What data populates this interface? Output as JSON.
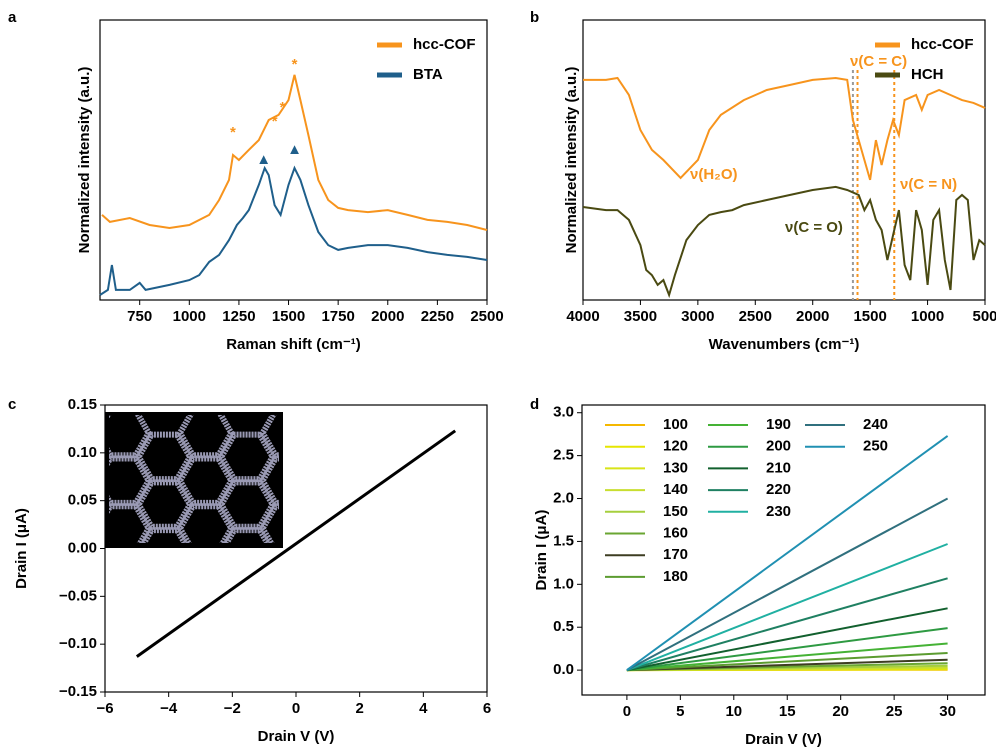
{
  "chart_data": [
    {
      "type": "line",
      "panel_label": "a",
      "xlabel": "Raman shift (cm⁻¹)",
      "ylabel": "Normalized intensity (a.u.)",
      "xlim": [
        550,
        2500
      ],
      "ylim": [
        0,
        1
      ],
      "xticks": [
        750,
        1000,
        1250,
        1500,
        1750,
        2000,
        2250,
        2500
      ],
      "legend": "upper right",
      "series": [
        {
          "name": "hcc-COF",
          "color": "#f7941d",
          "x": [
            560,
            600,
            700,
            800,
            900,
            1000,
            1100,
            1150,
            1200,
            1220,
            1250,
            1300,
            1350,
            1400,
            1450,
            1500,
            1530,
            1560,
            1600,
            1650,
            1700,
            1750,
            1800,
            1900,
            2000,
            2100,
            2200,
            2300,
            2400,
            2500
          ],
          "values": [
            0.304,
            0.279,
            0.293,
            0.268,
            0.257,
            0.268,
            0.304,
            0.357,
            0.429,
            0.518,
            0.5,
            0.536,
            0.571,
            0.643,
            0.661,
            0.714,
            0.804,
            0.714,
            0.589,
            0.429,
            0.357,
            0.329,
            0.321,
            0.314,
            0.321,
            0.304,
            0.286,
            0.279,
            0.268,
            0.25
          ]
        },
        {
          "name": "BTA",
          "color": "#1f5f8b",
          "x": [
            550,
            590,
            610,
            630,
            700,
            750,
            780,
            900,
            1000,
            1050,
            1100,
            1150,
            1200,
            1240,
            1270,
            1300,
            1350,
            1380,
            1400,
            1430,
            1460,
            1500,
            1530,
            1560,
            1600,
            1650,
            1700,
            1750,
            1800,
            1900,
            2000,
            2100,
            2200,
            2300,
            2400,
            2500
          ],
          "values": [
            0.018,
            0.036,
            0.125,
            0.036,
            0.036,
            0.061,
            0.036,
            0.054,
            0.071,
            0.089,
            0.136,
            0.161,
            0.214,
            0.268,
            0.293,
            0.321,
            0.411,
            0.471,
            0.446,
            0.339,
            0.304,
            0.411,
            0.471,
            0.429,
            0.339,
            0.243,
            0.196,
            0.179,
            0.186,
            0.196,
            0.196,
            0.186,
            0.171,
            0.161,
            0.154,
            0.143
          ]
        }
      ],
      "peaks": [
        {
          "symbol": "*",
          "color": "#f7941d",
          "x": 1220,
          "y": 0.596
        },
        {
          "symbol": "*",
          "color": "#f7941d",
          "x": 1430,
          "y": 0.636
        },
        {
          "symbol": "*",
          "color": "#f7941d",
          "x": 1470,
          "y": 0.686
        },
        {
          "symbol": "*",
          "color": "#f7941d",
          "x": 1530,
          "y": 0.839
        },
        {
          "symbol": "▲",
          "color": "#1f5f8b",
          "x": 1375,
          "y": 0.5
        },
        {
          "symbol": "▲",
          "color": "#1f5f8b",
          "x": 1530,
          "y": 0.536
        }
      ]
    },
    {
      "type": "line",
      "panel_label": "b",
      "xlabel": "Wavenumbers (cm⁻¹)",
      "ylabel": "Normalized intensity (a.u.)",
      "xlim": [
        4000,
        500
      ],
      "ylim": [
        0,
        1
      ],
      "xticks": [
        4000,
        3500,
        3000,
        2500,
        2000,
        1500,
        1000,
        500
      ],
      "legend": "upper right",
      "series": [
        {
          "name": "hcc-COF",
          "color": "#f7941d",
          "x": [
            4000,
            3800,
            3700,
            3600,
            3500,
            3400,
            3300,
            3150,
            3000,
            2900,
            2800,
            2600,
            2400,
            2200,
            2000,
            1800,
            1700,
            1650,
            1600,
            1550,
            1500,
            1450,
            1400,
            1350,
            1300,
            1250,
            1200,
            1100,
            1050,
            1000,
            900,
            800,
            700,
            600,
            500
          ],
          "values": [
            0.786,
            0.786,
            0.793,
            0.732,
            0.607,
            0.536,
            0.5,
            0.436,
            0.5,
            0.607,
            0.661,
            0.714,
            0.75,
            0.768,
            0.786,
            0.793,
            0.786,
            0.643,
            0.571,
            0.5,
            0.429,
            0.571,
            0.482,
            0.571,
            0.643,
            0.589,
            0.714,
            0.732,
            0.679,
            0.732,
            0.75,
            0.732,
            0.714,
            0.704,
            0.686
          ]
        },
        {
          "name": "HCH",
          "color": "#4a4a12",
          "x": [
            4000,
            3800,
            3700,
            3600,
            3500,
            3450,
            3400,
            3350,
            3300,
            3250,
            3200,
            3100,
            3000,
            2900,
            2800,
            2700,
            2600,
            2400,
            2200,
            2000,
            1800,
            1700,
            1600,
            1550,
            1500,
            1450,
            1400,
            1350,
            1300,
            1250,
            1200,
            1150,
            1100,
            1050,
            1000,
            950,
            900,
            850,
            800,
            750,
            700,
            650,
            600,
            550,
            500
          ],
          "values": [
            0.332,
            0.321,
            0.321,
            0.286,
            0.196,
            0.107,
            0.089,
            0.054,
            0.071,
            0.018,
            0.089,
            0.214,
            0.268,
            0.304,
            0.314,
            0.321,
            0.339,
            0.357,
            0.375,
            0.393,
            0.404,
            0.393,
            0.375,
            0.321,
            0.357,
            0.286,
            0.25,
            0.143,
            0.232,
            0.321,
            0.125,
            0.071,
            0.321,
            0.25,
            0.054,
            0.286,
            0.321,
            0.143,
            0.036,
            0.357,
            0.375,
            0.357,
            0.143,
            0.214,
            0.196
          ]
        }
      ],
      "reference_lines": [
        {
          "x": 1650,
          "color": "#999999"
        },
        {
          "x": 1610,
          "color": "#f7941d"
        },
        {
          "x": 1290,
          "color": "#f7941d"
        }
      ],
      "annotations": [
        {
          "text": "ν(H₂O)",
          "color": "#f7941d"
        },
        {
          "text": "ν(C = C)",
          "color": "#f7941d"
        },
        {
          "text": "ν(C = N)",
          "color": "#f7941d"
        },
        {
          "text": "ν(C = O)",
          "color": "#4a4a12"
        }
      ]
    },
    {
      "type": "line",
      "panel_label": "c",
      "xlabel": "Drain V (V)",
      "ylabel": "Drain I (μA)",
      "xlim": [
        -6,
        6
      ],
      "ylim": [
        -0.15,
        0.15
      ],
      "xticks": [
        {
          "value": -6,
          "label": "−6"
        },
        {
          "value": -4,
          "label": "−4"
        },
        {
          "value": -2,
          "label": "−2"
        },
        0,
        2,
        4,
        6
      ],
      "yticks": [
        {
          "value": -0.15,
          "label": "−0.15"
        },
        {
          "value": -0.1,
          "label": "−0.10"
        },
        {
          "value": -0.05,
          "label": "−0.05"
        },
        {
          "value": 0,
          "label": "0.00"
        },
        0.05,
        {
          "value": 0.1,
          "label": "0.10"
        },
        0.15
      ],
      "series": [
        {
          "color": "#000000",
          "x": [
            -5,
            5
          ],
          "values": [
            -0.113,
            0.123
          ]
        }
      ]
    },
    {
      "type": "line",
      "panel_label": "d",
      "xlabel": "Drain V (V)",
      "ylabel": "Drain I (μA)",
      "xlim": [
        -4.2,
        33.5
      ],
      "ylim": [
        -0.29,
        3.09
      ],
      "xticks": [
        0,
        5,
        10,
        15,
        20,
        25,
        30
      ],
      "yticks": [
        {
          "value": 0,
          "label": "0.0"
        },
        {
          "value": 0.5,
          "label": "0.5"
        },
        {
          "value": 1,
          "label": "1.0"
        },
        {
          "value": 1.5,
          "label": "1.5"
        },
        {
          "value": 2,
          "label": "2.0"
        },
        {
          "value": 2.5,
          "label": "2.5"
        },
        {
          "value": 3,
          "label": "3.0"
        }
      ],
      "legend": "upper left",
      "series": [
        {
          "name": "100",
          "color": "#f5b800",
          "x": [
            0,
            30
          ],
          "values": [
            0,
            0.005
          ]
        },
        {
          "name": "120",
          "color": "#e6e600",
          "x": [
            0,
            30
          ],
          "values": [
            0,
            0.01
          ]
        },
        {
          "name": "130",
          "color": "#d8e418",
          "x": [
            0,
            30
          ],
          "values": [
            0,
            0.02
          ]
        },
        {
          "name": "140",
          "color": "#c8de30",
          "x": [
            0,
            30
          ],
          "values": [
            0,
            0.03
          ]
        },
        {
          "name": "150",
          "color": "#a6cf3e",
          "x": [
            0,
            30
          ],
          "values": [
            0,
            0.05
          ]
        },
        {
          "name": "160",
          "color": "#6aa632",
          "x": [
            0,
            30
          ],
          "values": [
            0,
            0.08
          ]
        },
        {
          "name": "170",
          "color": "#3d3d22",
          "x": [
            0,
            30
          ],
          "values": [
            0,
            0.12
          ]
        },
        {
          "name": "180",
          "color": "#5c9c30",
          "x": [
            0,
            30
          ],
          "values": [
            0,
            0.2
          ]
        },
        {
          "name": "190",
          "color": "#45b235",
          "x": [
            0,
            30
          ],
          "values": [
            0,
            0.31
          ]
        },
        {
          "name": "200",
          "color": "#2e9a42",
          "x": [
            0,
            30
          ],
          "values": [
            0,
            0.49
          ]
        },
        {
          "name": "210",
          "color": "#12602e",
          "x": [
            0,
            30
          ],
          "values": [
            0,
            0.72
          ]
        },
        {
          "name": "220",
          "color": "#1f8062",
          "x": [
            0,
            30
          ],
          "values": [
            0,
            1.07
          ]
        },
        {
          "name": "230",
          "color": "#20b0a2",
          "x": [
            0,
            30
          ],
          "values": [
            0,
            1.47
          ]
        },
        {
          "name": "240",
          "color": "#30707e",
          "x": [
            0,
            30
          ],
          "values": [
            0,
            2.0
          ]
        },
        {
          "name": "250",
          "color": "#2090b2",
          "x": [
            0,
            30
          ],
          "values": [
            0,
            2.73
          ]
        }
      ]
    }
  ]
}
